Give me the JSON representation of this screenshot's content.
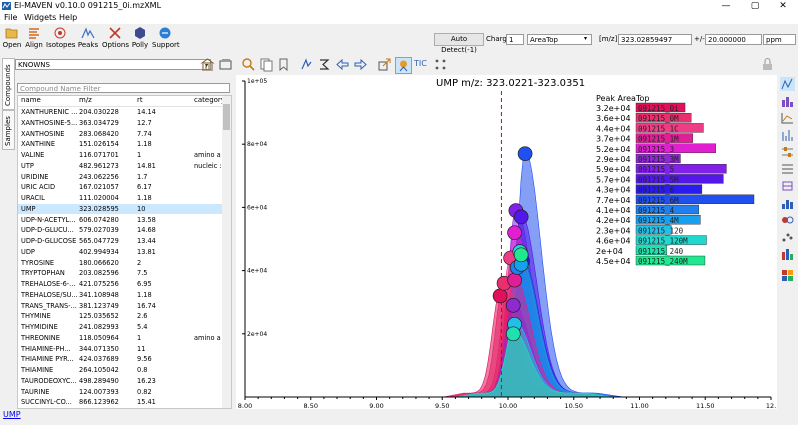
{
  "window": {
    "title": "El-MAVEN v0.10.0 091215_0i.mzXML",
    "minimize": "—",
    "maximize": "▢",
    "close": "✕"
  },
  "menu": [
    "File",
    "Widgets",
    "Help"
  ],
  "toolbar": {
    "buttons": [
      {
        "label": "Open",
        "icon": "folder-open-icon"
      },
      {
        "label": "Align",
        "icon": "align-icon"
      },
      {
        "label": "Isotopes",
        "icon": "isotopes-icon"
      },
      {
        "label": "Peaks",
        "icon": "peaks-icon"
      },
      {
        "label": "Options",
        "icon": "options-icon"
      },
      {
        "label": "Polly",
        "icon": "polly-icon"
      },
      {
        "label": "Support",
        "icon": "support-icon"
      }
    ],
    "auto_detect": "Auto Detect(-1)",
    "charge_label": "Charge",
    "charge_value": "1",
    "quant_type": "AreaTop",
    "mz_label": "[m/z]",
    "mz_value": "323.02859497",
    "pm_label": "+/-",
    "ppm_value": "20.000000",
    "ppm_unit": "ppm"
  },
  "left_tabs": [
    "Compounds",
    "Samples"
  ],
  "compound_panel": {
    "database": "KNOWNS",
    "filter_placeholder": "Compound Name Filter",
    "columns": [
      "name",
      "m/z",
      "rt",
      "category"
    ],
    "rows": [
      {
        "name": "XANTHURENIC ...",
        "mz": "204.030228",
        "rt": "14.14",
        "cat": ""
      },
      {
        "name": "XANTHOSINE-5...",
        "mz": "363.034729",
        "rt": "12.7",
        "cat": ""
      },
      {
        "name": "XANTHOSINE",
        "mz": "283.068420",
        "rt": "7.74",
        "cat": ""
      },
      {
        "name": "XANTHINE",
        "mz": "151.026154",
        "rt": "1.18",
        "cat": ""
      },
      {
        "name": "VALINE",
        "mz": "116.071701",
        "rt": "1",
        "cat": "amino a"
      },
      {
        "name": "UTP",
        "mz": "482.961273",
        "rt": "14.81",
        "cat": "nucleic :"
      },
      {
        "name": "URIDINE",
        "mz": "243.062256",
        "rt": "1.7",
        "cat": ""
      },
      {
        "name": "URIC ACID",
        "mz": "167.021057",
        "rt": "6.17",
        "cat": ""
      },
      {
        "name": "URACIL",
        "mz": "111.020004",
        "rt": "1.18",
        "cat": ""
      },
      {
        "name": "UMP",
        "mz": "323.028595",
        "rt": "10",
        "cat": ""
      },
      {
        "name": "UDP-N-ACETYL...",
        "mz": "606.074280",
        "rt": "13.58",
        "cat": ""
      },
      {
        "name": "UDP-D-GLUCU...",
        "mz": "579.027039",
        "rt": "14.68",
        "cat": ""
      },
      {
        "name": "UDP-D-GLUCOSE",
        "mz": "565.047729",
        "rt": "13.44",
        "cat": ""
      },
      {
        "name": "UDP",
        "mz": "402.994934",
        "rt": "13.81",
        "cat": ""
      },
      {
        "name": "TYROSINE",
        "mz": "180.066620",
        "rt": "2",
        "cat": ""
      },
      {
        "name": "TRYPTOPHAN",
        "mz": "203.082596",
        "rt": "7.5",
        "cat": ""
      },
      {
        "name": "TREHALOSE-6-...",
        "mz": "421.075256",
        "rt": "6.95",
        "cat": ""
      },
      {
        "name": "TREHALOSE/SU...",
        "mz": "341.108948",
        "rt": "1.18",
        "cat": ""
      },
      {
        "name": "TRANS_TRANS-...",
        "mz": "381.123749",
        "rt": "16.74",
        "cat": ""
      },
      {
        "name": "THYMINE",
        "mz": "125.035652",
        "rt": "2.6",
        "cat": ""
      },
      {
        "name": "THYMIDINE",
        "mz": "241.082993",
        "rt": "5.4",
        "cat": ""
      },
      {
        "name": "THREONINE",
        "mz": "118.050964",
        "rt": "1",
        "cat": "amino a"
      },
      {
        "name": "THIAMINE-PH...",
        "mz": "344.071350",
        "rt": "11",
        "cat": ""
      },
      {
        "name": "THIAMINE PYR...",
        "mz": "424.037689",
        "rt": "9.56",
        "cat": ""
      },
      {
        "name": "THIAMINE",
        "mz": "264.105042",
        "rt": "0.8",
        "cat": ""
      },
      {
        "name": "TAURODEOXYC...",
        "mz": "498.289490",
        "rt": "16.23",
        "cat": ""
      },
      {
        "name": "TAURINE",
        "mz": "124.007393",
        "rt": "0.82",
        "cat": ""
      },
      {
        "name": "SUCCINYL-CO...",
        "mz": "866.123962",
        "rt": "15.41",
        "cat": ""
      },
      {
        "name": "SUCCINATE",
        "mz": "117.019333",
        "rt": "11.6",
        "cat": ""
      }
    ],
    "selected_index": 9
  },
  "plot_toolbar": {
    "tic_label": "TIC"
  },
  "chart_data": {
    "type": "area",
    "title": "UMP m/z: 323.0221-323.0351",
    "xlim": [
      8.0,
      12.0
    ],
    "ylim": [
      0,
      100000
    ],
    "xticks": [
      "8.00",
      "8.50",
      "9.00",
      "9.50",
      "10.00",
      "10.50",
      "11.00",
      "11.50",
      "12."
    ],
    "yticks": [
      "2e+04",
      "4e+04",
      "6e+04",
      "8e+04",
      "1e+05"
    ],
    "expected_rt": 9.95,
    "legend_title": "Peak AreaTop",
    "series": [
      {
        "name": "091215_0i",
        "value": "3.2e+04",
        "peak_rt": 9.94,
        "peak_y": 32000,
        "color": "#e0105a"
      },
      {
        "name": "091215_0M",
        "value": "3.6e+04",
        "peak_rt": 9.97,
        "peak_y": 36000,
        "color": "#e8306e"
      },
      {
        "name": "091215_1C",
        "value": "4.4e+04",
        "peak_rt": 10.02,
        "peak_y": 44000,
        "color": "#f03c86"
      },
      {
        "name": "091215_1M",
        "value": "3.7e+04",
        "peak_rt": 10.05,
        "peak_y": 37000,
        "color": "#e01f96"
      },
      {
        "name": "091215_3",
        "value": "5.2e+04",
        "peak_rt": 10.05,
        "peak_y": 52000,
        "color": "#e020d0"
      },
      {
        "name": "091215_3M",
        "value": "2.9e+04",
        "peak_rt": 10.04,
        "peak_y": 29000,
        "color": "#8e2ad0"
      },
      {
        "name": "091215_5",
        "value": "5.9e+04",
        "peak_rt": 10.06,
        "peak_y": 59000,
        "color": "#8020e8"
      },
      {
        "name": "091215_5M",
        "value": "5.7e+04",
        "peak_rt": 10.1,
        "peak_y": 57000,
        "color": "#5318e8"
      },
      {
        "name": "091215_6",
        "value": "4.3e+04",
        "peak_rt": 10.11,
        "peak_y": 43000,
        "color": "#2a1cf0"
      },
      {
        "name": "091215_6M",
        "value": "7.7e+04",
        "peak_rt": 10.13,
        "peak_y": 77000,
        "color": "#2050f0"
      },
      {
        "name": "091215_4",
        "value": "4.1e+04",
        "peak_rt": 10.07,
        "peak_y": 41000,
        "color": "#2080f0"
      },
      {
        "name": "091215_4M",
        "value": "4.2e+04",
        "peak_rt": 10.1,
        "peak_y": 42000,
        "color": "#18a0f0"
      },
      {
        "name": "091215_120",
        "value": "2.3e+04",
        "peak_rt": 10.05,
        "peak_y": 23000,
        "color": "#20c0e8"
      },
      {
        "name": "091215_120M",
        "value": "4.6e+04",
        "peak_rt": 10.09,
        "peak_y": 46000,
        "color": "#20d8d0"
      },
      {
        "name": "091215_240",
        "value": "2e+04",
        "peak_rt": 10.04,
        "peak_y": 20000,
        "color": "#20e0b0"
      },
      {
        "name": "091215_240M",
        "value": "4.5e+04",
        "peak_rt": 10.1,
        "peak_y": 45000,
        "color": "#20e890"
      }
    ]
  },
  "status": {
    "link": "UMP"
  }
}
